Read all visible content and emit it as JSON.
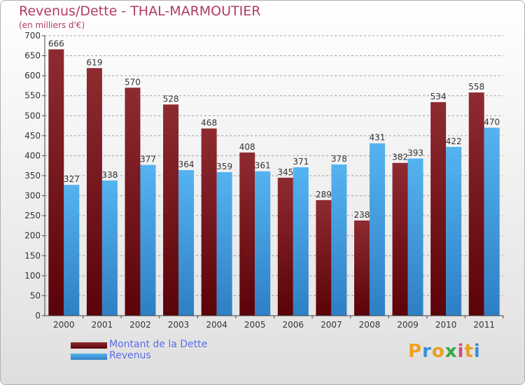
{
  "title": "Revenus/Dette - THAL-MARMOUTIER",
  "subtitle": "(en milliers d'€)",
  "logo": {
    "text": "Proxiti",
    "letters": [
      "P",
      "r",
      "o",
      "x",
      "i",
      "t",
      "i"
    ],
    "colors": [
      "#f0a020",
      "#3a8fd6",
      "#e8a020",
      "#35a845",
      "#d04a8a",
      "#e8a020",
      "#3a8fd6"
    ]
  },
  "colors": {
    "dette": "#7a1a1e",
    "revenus": "#4aa8e8",
    "axis": "#444444",
    "grid": "#9a9a9a"
  },
  "chart_data": {
    "type": "bar",
    "title": "Revenus/Dette - THAL-MARMOUTIER",
    "subtitle": "(en milliers d'€)",
    "categories": [
      "2000",
      "2001",
      "2002",
      "2003",
      "2004",
      "2005",
      "2006",
      "2007",
      "2008",
      "2009",
      "2010",
      "2011"
    ],
    "series": [
      {
        "name": "Montant de la Dette",
        "values": [
          666,
          619,
          570,
          528,
          468,
          408,
          345,
          289,
          238,
          382,
          534,
          558
        ]
      },
      {
        "name": "Revenus",
        "values": [
          327,
          338,
          377,
          364,
          359,
          361,
          371,
          378,
          431,
          393,
          422,
          470
        ]
      }
    ],
    "ylim": [
      0,
      700
    ],
    "yticks": [
      0,
      50,
      100,
      150,
      200,
      250,
      300,
      350,
      400,
      450,
      500,
      550,
      600,
      650,
      700
    ],
    "grid": true,
    "legend": "bottom-left"
  }
}
